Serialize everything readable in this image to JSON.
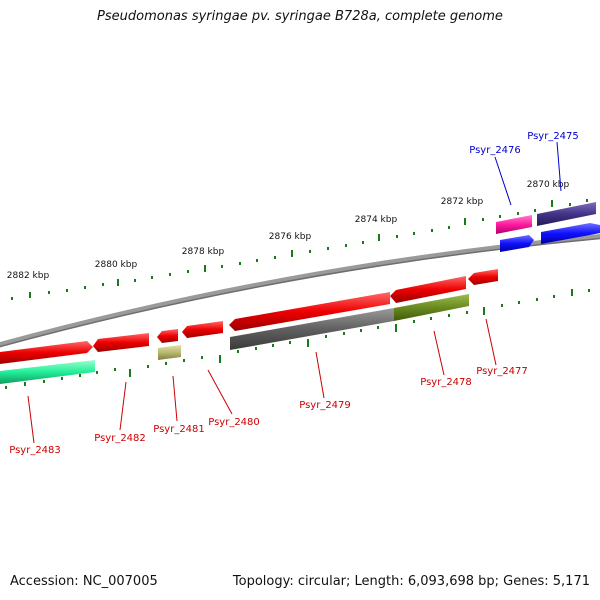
{
  "title": "Pseudomonas syringae pv. syringae B728a, complete genome",
  "footer": {
    "accession": "Accession: NC_007005",
    "summary": "Topology: circular; Length: 6,093,698 bp; Genes: 5,171"
  },
  "ticks": [
    "2870 kbp",
    "2872 kbp",
    "2874 kbp",
    "2876 kbp",
    "2878 kbp",
    "2880 kbp",
    "2882 kbp"
  ],
  "gene_labels": [
    {
      "label": "Psyr_2475",
      "color": "#0000cc"
    },
    {
      "label": "Psyr_2476",
      "color": "#0000cc"
    },
    {
      "label": "Psyr_2477",
      "color": "#cc0000"
    },
    {
      "label": "Psyr_2478",
      "color": "#cc0000"
    },
    {
      "label": "Psyr_2479",
      "color": "#cc0000"
    },
    {
      "label": "Psyr_2480",
      "color": "#cc0000"
    },
    {
      "label": "Psyr_2481",
      "color": "#cc0000"
    },
    {
      "label": "Psyr_2482",
      "color": "#cc0000"
    },
    {
      "label": "Psyr_2483",
      "color": "#cc0000"
    }
  ],
  "colors": {
    "forward_cds": "#ee0000",
    "reverse_cds": "#1010ff",
    "backbone": "#8c8c8c",
    "tick": "#1a7a1a",
    "feature_teal": "#22ee99",
    "feature_olive": "#b8b870",
    "feature_gray": "#606060",
    "feature_green": "#6a8a20",
    "feature_pink": "#ff1aa0",
    "feature_navy": "#443388"
  }
}
